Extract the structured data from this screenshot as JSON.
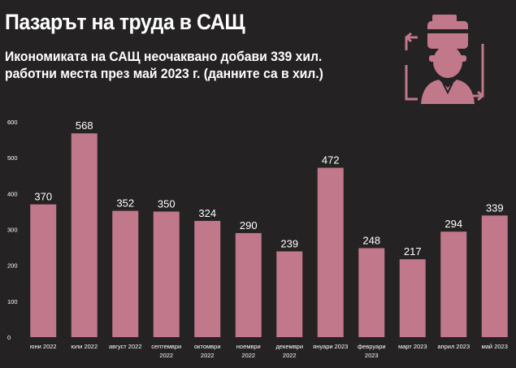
{
  "header": {
    "title": "Пазарът на труда в САЩ",
    "subtitle": "Икономиката на САЩ неочаквано добави 339 хил. работни места през май 2023 г. (данните са в хил.)"
  },
  "icon": {
    "name": "job-search-worker-icon",
    "color": "#c0788a"
  },
  "chart_data": {
    "type": "bar",
    "categories": [
      [
        "юни 2022"
      ],
      [
        "юли 2022"
      ],
      [
        "август 2022"
      ],
      [
        "септември",
        "2022"
      ],
      [
        "октомври",
        "2022"
      ],
      [
        "ноември",
        "2022"
      ],
      [
        "декември",
        "2022"
      ],
      [
        "януари 2023"
      ],
      [
        "февруари",
        "2023"
      ],
      [
        "март 2023"
      ],
      [
        "април 2023"
      ],
      [
        "май 2023"
      ]
    ],
    "values": [
      370,
      568,
      352,
      350,
      324,
      290,
      239,
      472,
      248,
      217,
      294,
      339
    ],
    "ylim": [
      0,
      600
    ],
    "yticks": [
      0,
      100,
      200,
      300,
      400,
      500,
      600
    ],
    "bar_color": "#c0788a",
    "grid": false,
    "data_labels": true
  }
}
